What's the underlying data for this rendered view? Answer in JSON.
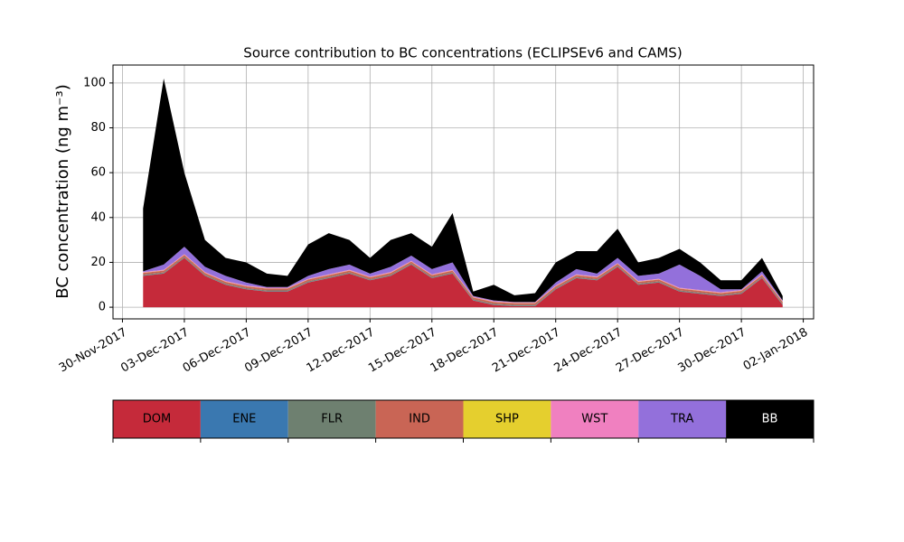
{
  "chart_data": {
    "type": "stacked_area",
    "title": "Source contribution to BC concentrations (ECLIPSEv6 and CAMS)",
    "y_label": "BC concentration (ng m⁻³)",
    "x": [
      "2017-12-01",
      "2017-12-02",
      "2017-12-03",
      "2017-12-04",
      "2017-12-05",
      "2017-12-06",
      "2017-12-07",
      "2017-12-08",
      "2017-12-09",
      "2017-12-10",
      "2017-12-11",
      "2017-12-12",
      "2017-12-13",
      "2017-12-14",
      "2017-12-15",
      "2017-12-16",
      "2017-12-17",
      "2017-12-18",
      "2017-12-19",
      "2017-12-20",
      "2017-12-21",
      "2017-12-22",
      "2017-12-23",
      "2017-12-24",
      "2017-12-25",
      "2017-12-26",
      "2017-12-27",
      "2017-12-28",
      "2017-12-29",
      "2017-12-30",
      "2017-12-31",
      "2018-01-01"
    ],
    "series": [
      {
        "name": "DOM",
        "color": "#c52a3a",
        "values": [
          14,
          15,
          22,
          14,
          10,
          8,
          7,
          7,
          11,
          13,
          15,
          12,
          14,
          19,
          13,
          15,
          3,
          1,
          0.5,
          0.5,
          8,
          13,
          12,
          18,
          10,
          11,
          7,
          6,
          5,
          6,
          13,
          1
        ]
      },
      {
        "name": "ENE",
        "color": "#3a78b0",
        "values": [
          0.1,
          0.1,
          0.1,
          0.1,
          0.1,
          0.1,
          0.1,
          0.1,
          0.1,
          0.1,
          0.1,
          0.1,
          0.1,
          0.1,
          0.1,
          0.1,
          0.1,
          0.1,
          0.1,
          0.1,
          0.1,
          0.1,
          0.1,
          0.1,
          0.1,
          0.1,
          0.1,
          0.1,
          0.1,
          0.1,
          0.1,
          0.1
        ]
      },
      {
        "name": "FLR",
        "color": "#6e8070",
        "values": [
          0.4,
          0.4,
          0.4,
          0.4,
          0.4,
          0.4,
          0.4,
          0.4,
          0.4,
          0.4,
          0.4,
          0.4,
          0.4,
          0.4,
          0.4,
          0.4,
          0.4,
          0.4,
          0.4,
          0.4,
          0.4,
          0.4,
          0.4,
          0.4,
          0.4,
          0.4,
          0.4,
          0.4,
          0.4,
          0.4,
          0.4,
          0.4
        ]
      },
      {
        "name": "IND",
        "color": "#c96555",
        "values": [
          0.8,
          0.8,
          0.8,
          0.8,
          0.8,
          0.8,
          0.8,
          0.8,
          0.8,
          0.8,
          0.8,
          0.8,
          0.8,
          0.8,
          0.8,
          0.8,
          0.8,
          0.8,
          0.8,
          0.8,
          0.8,
          0.8,
          0.8,
          0.8,
          0.8,
          0.8,
          0.8,
          0.8,
          0.8,
          0.8,
          0.8,
          0.8
        ]
      },
      {
        "name": "SHP",
        "color": "#e5cf2e",
        "values": [
          0.1,
          0.1,
          0.1,
          0.1,
          0.1,
          0.1,
          0.1,
          0.1,
          0.1,
          0.1,
          0.1,
          0.1,
          0.1,
          0.1,
          0.1,
          0.1,
          0.1,
          0.1,
          0.1,
          0.1,
          0.1,
          0.1,
          0.1,
          0.1,
          0.1,
          0.1,
          0.1,
          0.1,
          0.1,
          0.1,
          0.1,
          0.1
        ]
      },
      {
        "name": "WST",
        "color": "#f080c0",
        "values": [
          0.3,
          0.3,
          0.3,
          0.3,
          0.3,
          0.3,
          0.3,
          0.3,
          0.3,
          0.3,
          0.3,
          0.3,
          0.3,
          0.3,
          0.3,
          0.3,
          0.3,
          0.3,
          0.3,
          0.3,
          0.3,
          0.3,
          0.3,
          0.3,
          0.3,
          0.3,
          0.3,
          0.3,
          0.3,
          0.3,
          0.3,
          0.3
        ]
      },
      {
        "name": "TRA",
        "color": "#9370db",
        "values": [
          0.3,
          2.3,
          3.3,
          2.3,
          2.3,
          1.3,
          0.3,
          0.3,
          1.3,
          2.3,
          2.3,
          1.3,
          2.3,
          2.3,
          2.3,
          3.3,
          0.3,
          0.3,
          0.1,
          0.1,
          1.3,
          2.3,
          1.3,
          2.3,
          2.3,
          2.3,
          10.3,
          6.3,
          1.3,
          0.3,
          1.3,
          0.3
        ]
      },
      {
        "name": "BB",
        "color": "#000000",
        "values": [
          28,
          83,
          33,
          12,
          8,
          9,
          6,
          5,
          14,
          16,
          11,
          7,
          12,
          10,
          10,
          22,
          2,
          7,
          3,
          4,
          9,
          8,
          10,
          13,
          6,
          7,
          7,
          6,
          4,
          4,
          6,
          2
        ]
      }
    ],
    "xlim": [
      "2017-11-29T13:00:00Z",
      "2018-01-02T12:00:00Z"
    ],
    "xticks": [
      {
        "value": "2017-11-30",
        "label": "30-Nov-2017"
      },
      {
        "value": "2017-12-03",
        "label": "03-Dec-2017"
      },
      {
        "value": "2017-12-06",
        "label": "06-Dec-2017"
      },
      {
        "value": "2017-12-09",
        "label": "09-Dec-2017"
      },
      {
        "value": "2017-12-12",
        "label": "12-Dec-2017"
      },
      {
        "value": "2017-12-15",
        "label": "15-Dec-2017"
      },
      {
        "value": "2017-12-18",
        "label": "18-Dec-2017"
      },
      {
        "value": "2017-12-21",
        "label": "21-Dec-2017"
      },
      {
        "value": "2017-12-24",
        "label": "24-Dec-2017"
      },
      {
        "value": "2017-12-27",
        "label": "27-Dec-2017"
      },
      {
        "value": "2017-12-30",
        "label": "30-Dec-2017"
      },
      {
        "value": "2018-01-02",
        "label": "02-Jan-2018"
      }
    ],
    "ylim": [
      -5.2,
      108
    ],
    "yticks": [
      0,
      20,
      40,
      60,
      80,
      100
    ],
    "grid": true
  }
}
